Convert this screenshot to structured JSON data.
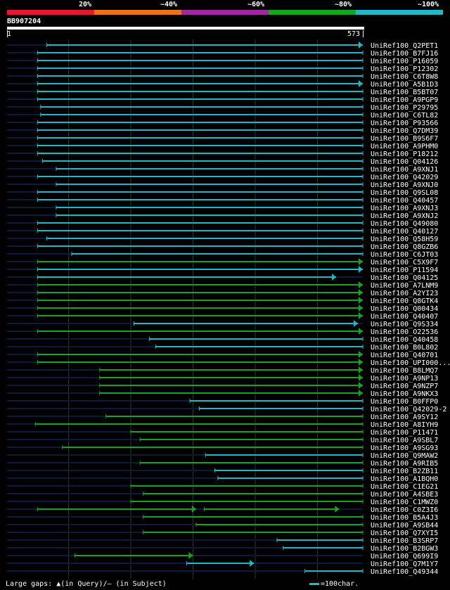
{
  "colors": {
    "background": "#000000",
    "identity_bins": [
      "#e8162e",
      "#e8741c",
      "#9e2aa0",
      "#17a326",
      "#20b8c8"
    ],
    "track": "#0d1a3a",
    "grid": "#2a3a2a",
    "gap_query": "#ffff88"
  },
  "legend": {
    "labels": [
      "20%",
      "~40%",
      "~60%",
      "~80%",
      "~100%"
    ]
  },
  "query": {
    "id": "BB907204",
    "start_label": "1",
    "end_label": "573"
  },
  "footer": {
    "gaps_text": "Large gaps: ▲(in Query)/— (in Subject)",
    "scale_text": "=100char."
  },
  "chart_data": {
    "type": "alignment",
    "title": "BB907204",
    "query_length": 573,
    "identity_bins": [
      "20%",
      "~40%",
      "~60%",
      "~80%",
      "~100%"
    ],
    "hits": [
      {
        "name": "UniRef100_Q2PET1",
        "start": 65,
        "end": 573,
        "bin": 4,
        "arrow": true
      },
      {
        "name": "UniRef100_B7FJ16",
        "start": 50,
        "end": 573,
        "bin": 4,
        "arrow": false
      },
      {
        "name": "UniRef100_P16059",
        "start": 50,
        "end": 573,
        "bin": 4,
        "arrow": false
      },
      {
        "name": "UniRef100_P12302",
        "start": 50,
        "end": 573,
        "bin": 4,
        "arrow": false
      },
      {
        "name": "UniRef100_C6T8W8",
        "start": 50,
        "end": 573,
        "bin": 4,
        "arrow": false
      },
      {
        "name": "UniRef100_A5B1D3",
        "start": 50,
        "end": 573,
        "bin": 4,
        "arrow": true
      },
      {
        "name": "UniRef100_B5BT07",
        "start": 50,
        "end": 573,
        "bin": 4,
        "arrow": false
      },
      {
        "name": "UniRef100_A9PGP9",
        "start": 50,
        "end": 573,
        "bin": 4,
        "arrow": false
      },
      {
        "name": "UniRef100_P29795",
        "start": 55,
        "end": 573,
        "bin": 4,
        "arrow": false
      },
      {
        "name": "UniRef100_C6TL82",
        "start": 55,
        "end": 573,
        "bin": 4,
        "arrow": false
      },
      {
        "name": "UniRef100_P93566",
        "start": 50,
        "end": 573,
        "bin": 4,
        "arrow": false
      },
      {
        "name": "UniRef100_Q7DM39",
        "start": 50,
        "end": 573,
        "bin": 4,
        "arrow": false
      },
      {
        "name": "UniRef100_B9S6F7",
        "start": 50,
        "end": 573,
        "bin": 4,
        "arrow": false
      },
      {
        "name": "UniRef100_A9PHM0",
        "start": 50,
        "end": 573,
        "bin": 4,
        "arrow": false
      },
      {
        "name": "UniRef100_P18212",
        "start": 50,
        "end": 573,
        "bin": 4,
        "arrow": false
      },
      {
        "name": "UniRef100_Q04126",
        "start": 58,
        "end": 573,
        "bin": 4,
        "arrow": false
      },
      {
        "name": "UniRef100_A9XNJ1",
        "start": 80,
        "end": 573,
        "bin": 4,
        "arrow": false
      },
      {
        "name": "UniRef100_Q42029",
        "start": 50,
        "end": 573,
        "bin": 4,
        "arrow": false
      },
      {
        "name": "UniRef100_A9XNJ0",
        "start": 80,
        "end": 573,
        "bin": 4,
        "arrow": false
      },
      {
        "name": "UniRef100_Q9SL08",
        "start": 50,
        "end": 573,
        "bin": 4,
        "arrow": false
      },
      {
        "name": "UniRef100_Q40457",
        "start": 50,
        "end": 573,
        "bin": 4,
        "arrow": false
      },
      {
        "name": "UniRef100_A9XNJ3",
        "start": 80,
        "end": 573,
        "bin": 4,
        "arrow": false
      },
      {
        "name": "UniRef100_A9XNJ2",
        "start": 80,
        "end": 573,
        "bin": 4,
        "arrow": false
      },
      {
        "name": "UniRef100_Q49080",
        "start": 50,
        "end": 573,
        "bin": 4,
        "arrow": false
      },
      {
        "name": "UniRef100_Q40127",
        "start": 50,
        "end": 573,
        "bin": 4,
        "arrow": false
      },
      {
        "name": "UniRef100_Q58H59",
        "start": 65,
        "end": 573,
        "bin": 4,
        "arrow": false
      },
      {
        "name": "UniRef100_Q8GZB6",
        "start": 50,
        "end": 573,
        "bin": 4,
        "arrow": false
      },
      {
        "name": "UniRef100_C6JT03",
        "start": 105,
        "end": 573,
        "bin": 4,
        "arrow": false
      },
      {
        "name": "UniRef100_C5X9F7",
        "start": 50,
        "end": 573,
        "bin": 3,
        "arrow": true
      },
      {
        "name": "UniRef100_P11594",
        "start": 50,
        "end": 573,
        "bin": 4,
        "arrow": true
      },
      {
        "name": "UniRef100_Q04125",
        "start": 50,
        "end": 530,
        "bin": 4,
        "arrow": true
      },
      {
        "name": "UniRef100_A7LNM9",
        "start": 50,
        "end": 573,
        "bin": 3,
        "arrow": true
      },
      {
        "name": "UniRef100_A2YI23",
        "start": 50,
        "end": 573,
        "bin": 3,
        "arrow": true
      },
      {
        "name": "UniRef100_Q8GTK4",
        "start": 50,
        "end": 573,
        "bin": 3,
        "arrow": true
      },
      {
        "name": "UniRef100_Q00434",
        "start": 50,
        "end": 573,
        "bin": 3,
        "arrow": true
      },
      {
        "name": "UniRef100_Q40407",
        "start": 50,
        "end": 573,
        "bin": 3,
        "arrow": true
      },
      {
        "name": "UniRef100_Q9S334",
        "start": 205,
        "end": 565,
        "bin": 4,
        "arrow": true
      },
      {
        "name": "UniRef100_O22536",
        "start": 50,
        "end": 573,
        "bin": 3,
        "arrow": true
      },
      {
        "name": "UniRef100_Q40458",
        "start": 230,
        "end": 573,
        "bin": 4,
        "arrow": false
      },
      {
        "name": "UniRef100_B0L802",
        "start": 240,
        "end": 573,
        "bin": 4,
        "arrow": false
      },
      {
        "name": "UniRef100_Q40701",
        "start": 50,
        "end": 573,
        "bin": 3,
        "arrow": true
      },
      {
        "name": "UniRef100_UPI000...",
        "start": 50,
        "end": 573,
        "bin": 3,
        "arrow": true
      },
      {
        "name": "UniRef100_B8LMQ7",
        "start": 150,
        "end": 573,
        "bin": 3,
        "arrow": true
      },
      {
        "name": "UniRef100_A9NP13",
        "start": 150,
        "end": 573,
        "bin": 3,
        "arrow": true
      },
      {
        "name": "UniRef100_A9NZP7",
        "start": 150,
        "end": 573,
        "bin": 3,
        "arrow": true
      },
      {
        "name": "UniRef100_A9NKX3",
        "start": 150,
        "end": 573,
        "bin": 3,
        "arrow": true
      },
      {
        "name": "UniRef100_B0FFP0",
        "start": 295,
        "end": 573,
        "bin": 4,
        "arrow": false
      },
      {
        "name": "UniRef100_Q42029-2",
        "start": 310,
        "end": 573,
        "bin": 4,
        "arrow": false
      },
      {
        "name": "UniRef100_A9SY12",
        "start": 160,
        "end": 573,
        "bin": 3,
        "arrow": false
      },
      {
        "name": "UniRef100_A8IYH9",
        "start": 47,
        "end": 573,
        "bin": 3,
        "arrow": false
      },
      {
        "name": "UniRef100_P11471",
        "start": 200,
        "end": 573,
        "bin": 3,
        "arrow": false
      },
      {
        "name": "UniRef100_A9SBL7",
        "start": 215,
        "end": 573,
        "bin": 3,
        "arrow": false
      },
      {
        "name": "UniRef100_A9SG93",
        "start": 90,
        "end": 573,
        "bin": 3,
        "arrow": false
      },
      {
        "name": "UniRef100_Q9MAW2",
        "start": 320,
        "end": 573,
        "bin": 4,
        "arrow": false
      },
      {
        "name": "UniRef100_A9RIB5",
        "start": 215,
        "end": 573,
        "bin": 3,
        "arrow": false
      },
      {
        "name": "UniRef100_B2ZB11",
        "start": 335,
        "end": 573,
        "bin": 4,
        "arrow": false
      },
      {
        "name": "UniRef100_A1BQH0",
        "start": 340,
        "end": 573,
        "bin": 4,
        "arrow": false
      },
      {
        "name": "UniRef100_C1EG21",
        "start": 200,
        "end": 573,
        "bin": 3,
        "arrow": false
      },
      {
        "name": "UniRef100_A4SBE3",
        "start": 220,
        "end": 573,
        "bin": 3,
        "arrow": false
      },
      {
        "name": "UniRef100_C1MWZ0",
        "start": 200,
        "end": 573,
        "bin": 3,
        "arrow": false
      },
      {
        "name": "UniRef100_C0Z3I6",
        "segments": [
          [
            50,
            305
          ],
          [
            318,
            535
          ]
        ],
        "bin": 3,
        "arrow": true
      },
      {
        "name": "UniRef100_B5A4J3",
        "start": 220,
        "end": 573,
        "bin": 3,
        "arrow": false
      },
      {
        "name": "UniRef100_A9SB44",
        "start": 305,
        "end": 573,
        "bin": 3,
        "arrow": false
      },
      {
        "name": "UniRef100_Q7XYI5",
        "start": 220,
        "end": 573,
        "bin": 3,
        "arrow": false
      },
      {
        "name": "UniRef100_B3SRP7",
        "start": 435,
        "end": 573,
        "bin": 4,
        "arrow": false
      },
      {
        "name": "UniRef100_B2BGW3",
        "start": 445,
        "end": 573,
        "bin": 4,
        "arrow": false
      },
      {
        "name": "UniRef100_Q699I9",
        "start": 110,
        "end": 300,
        "bin": 3,
        "arrow": true
      },
      {
        "name": "UniRef100_Q7M1Y7",
        "start": 290,
        "end": 398,
        "bin": 4,
        "arrow": true
      },
      {
        "name": "UniRef100_Q49344",
        "start": 480,
        "end": 573,
        "bin": 4,
        "arrow": false
      }
    ]
  }
}
